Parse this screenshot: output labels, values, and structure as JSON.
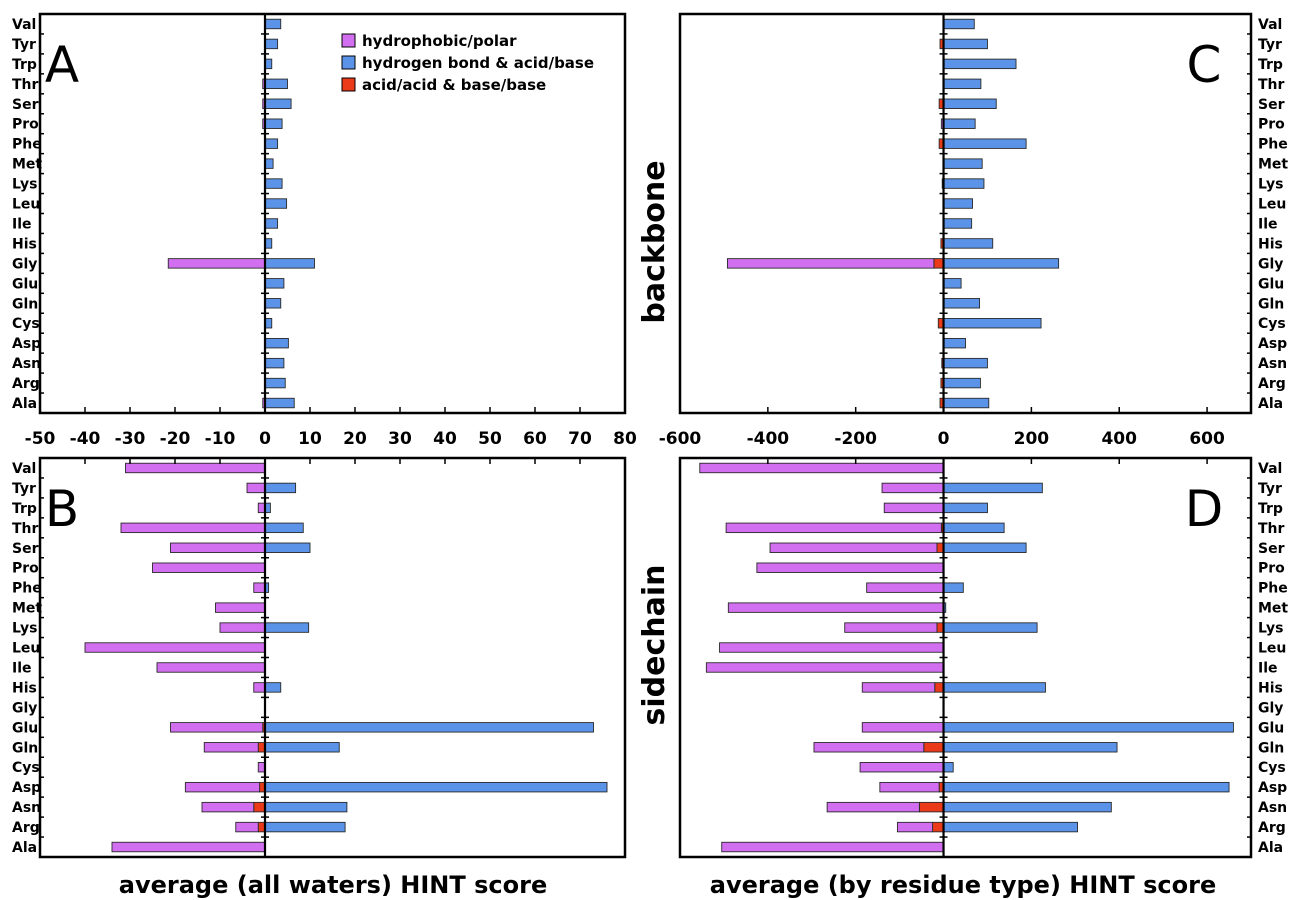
{
  "colors": {
    "hydrophobic": "#d26ff0",
    "hbond": "#5b93e8",
    "acid": "#ea3a1a"
  },
  "legend": [
    {
      "key": "hydrophobic",
      "label": "hydrophobic/polar"
    },
    {
      "key": "hbond",
      "label": "hydrogen bond & acid/base"
    },
    {
      "key": "acid",
      "label": "acid/acid & base/base"
    }
  ],
  "x_titles": {
    "left": "average (all waters) HINT score",
    "right": "average (by residue type) HINT score"
  },
  "side_labels": {
    "top": "backbone",
    "bottom": "sidechain"
  },
  "chart_data": [
    {
      "id": "A",
      "type": "bar",
      "orientation": "horizontal",
      "panel_label": "A",
      "categories": [
        "Val",
        "Tyr",
        "Trp",
        "Thr",
        "Ser",
        "Pro",
        "Phe",
        "Met",
        "Lys",
        "Leu",
        "Ile",
        "His",
        "Gly",
        "Glu",
        "Gln",
        "Cys",
        "Asp",
        "Asn",
        "Arg",
        "Ala"
      ],
      "xlim": [
        -50,
        80
      ],
      "ticks": [
        -50,
        -40,
        -30,
        -20,
        -10,
        0,
        10,
        20,
        30,
        40,
        50,
        60,
        70,
        80
      ],
      "series": [
        {
          "name": "hydrophobic/polar",
          "color_key": "hydrophobic",
          "values": [
            0,
            0,
            0,
            -0.5,
            -0.5,
            -0.5,
            0,
            0,
            0,
            0,
            0,
            0,
            -21.5,
            0,
            0,
            0,
            0,
            0,
            0,
            -0.5
          ]
        },
        {
          "name": "hydrogen bond & acid/base",
          "color_key": "hbond",
          "values": [
            3.5,
            2.8,
            1.5,
            5,
            5.8,
            3.8,
            2.8,
            1.8,
            3.8,
            4.8,
            2.8,
            1.5,
            11,
            4.2,
            3.5,
            1.5,
            5.2,
            4.2,
            4.5,
            6.5
          ]
        },
        {
          "name": "acid/acid & base/base",
          "color_key": "acid",
          "values": [
            0,
            0,
            0,
            0,
            0,
            0,
            0,
            0,
            0,
            0,
            0,
            0,
            0,
            0,
            0,
            0,
            0,
            0,
            0,
            0
          ]
        }
      ]
    },
    {
      "id": "B",
      "type": "bar",
      "orientation": "horizontal",
      "panel_label": "B",
      "categories": [
        "Val",
        "Tyr",
        "Trp",
        "Thr",
        "Ser",
        "Pro",
        "Phe",
        "Met",
        "Lys",
        "Leu",
        "Ile",
        "His",
        "Gly",
        "Glu",
        "Gln",
        "Cys",
        "Asp",
        "Asn",
        "Arg",
        "Ala"
      ],
      "xlim": [
        -50,
        80
      ],
      "ticks": [
        -50,
        -40,
        -30,
        -20,
        -10,
        0,
        10,
        20,
        30,
        40,
        50,
        60,
        70,
        80
      ],
      "series": [
        {
          "name": "hydrophobic/polar",
          "color_key": "hydrophobic",
          "values": [
            -31,
            -4,
            -1.5,
            -32,
            -21,
            -25,
            -2.5,
            -11,
            -10,
            -40,
            -24,
            -2.5,
            0,
            -20.5,
            -12,
            -1.5,
            -16.5,
            -11.5,
            -5,
            -34
          ]
        },
        {
          "name": "hydrogen bond & acid/base",
          "color_key": "hbond",
          "values": [
            0,
            6.8,
            1.2,
            8.5,
            10,
            0,
            0.8,
            0,
            9.7,
            0,
            0,
            3.5,
            0,
            73,
            16.5,
            0,
            76,
            18.2,
            17.8,
            0
          ]
        },
        {
          "name": "acid/acid & base/base",
          "color_key": "acid",
          "values": [
            0,
            0,
            0,
            0,
            0,
            0,
            0,
            0,
            0,
            0,
            0,
            0,
            0,
            -0.5,
            -1.5,
            0,
            -1.2,
            -2.5,
            -1.5,
            0
          ]
        }
      ]
    },
    {
      "id": "C",
      "type": "bar",
      "orientation": "horizontal",
      "panel_label": "C",
      "categories": [
        "Val",
        "Tyr",
        "Trp",
        "Thr",
        "Ser",
        "Pro",
        "Phe",
        "Met",
        "Lys",
        "Leu",
        "Ile",
        "His",
        "Gly",
        "Glu",
        "Gln",
        "Cys",
        "Asp",
        "Asn",
        "Arg",
        "Ala"
      ],
      "xlim": [
        -600,
        700
      ],
      "ticks": [
        -600,
        -400,
        -200,
        0,
        200,
        400,
        600
      ],
      "series": [
        {
          "name": "hydrophobic/polar",
          "color_key": "hydrophobic",
          "values": [
            0,
            0,
            0,
            0,
            0,
            -5,
            0,
            0,
            -3,
            0,
            0,
            0,
            -470,
            0,
            0,
            0,
            0,
            0,
            0,
            0
          ]
        },
        {
          "name": "hydrogen bond & acid/base",
          "color_key": "hbond",
          "values": [
            70,
            100,
            165,
            85,
            120,
            72,
            188,
            88,
            92,
            66,
            64,
            112,
            262,
            40,
            82,
            222,
            50,
            100,
            84,
            103
          ]
        },
        {
          "name": "acid/acid & base/base",
          "color_key": "acid",
          "values": [
            0,
            -8,
            0,
            0,
            -10,
            0,
            -10,
            0,
            0,
            0,
            0,
            -6,
            -22,
            0,
            0,
            -12,
            0,
            -4,
            -6,
            -8
          ]
        }
      ]
    },
    {
      "id": "D",
      "type": "bar",
      "orientation": "horizontal",
      "panel_label": "D",
      "categories": [
        "Val",
        "Tyr",
        "Trp",
        "Thr",
        "Ser",
        "Pro",
        "Phe",
        "Met",
        "Lys",
        "Leu",
        "Ile",
        "His",
        "Gly",
        "Glu",
        "Gln",
        "Cys",
        "Asp",
        "Asn",
        "Arg",
        "Ala"
      ],
      "xlim": [
        -600,
        700
      ],
      "ticks": [
        -600,
        -400,
        -200,
        0,
        200,
        400,
        600
      ],
      "series": [
        {
          "name": "hydrophobic/polar",
          "color_key": "hydrophobic",
          "values": [
            -555,
            -140,
            -135,
            -490,
            -380,
            -425,
            -175,
            -490,
            -210,
            -510,
            -540,
            -165,
            0,
            -185,
            -250,
            -190,
            -135,
            -210,
            -80,
            -505
          ]
        },
        {
          "name": "hydrogen bond & acid/base",
          "color_key": "hbond",
          "values": [
            0,
            225,
            100,
            138,
            188,
            0,
            45,
            5,
            213,
            0,
            0,
            232,
            0,
            660,
            395,
            22,
            650,
            382,
            305,
            0
          ]
        },
        {
          "name": "acid/acid & base/base",
          "color_key": "acid",
          "values": [
            0,
            0,
            0,
            -5,
            -15,
            0,
            0,
            0,
            -15,
            0,
            0,
            -20,
            0,
            0,
            -45,
            0,
            -10,
            -55,
            -25,
            0
          ]
        }
      ]
    }
  ]
}
